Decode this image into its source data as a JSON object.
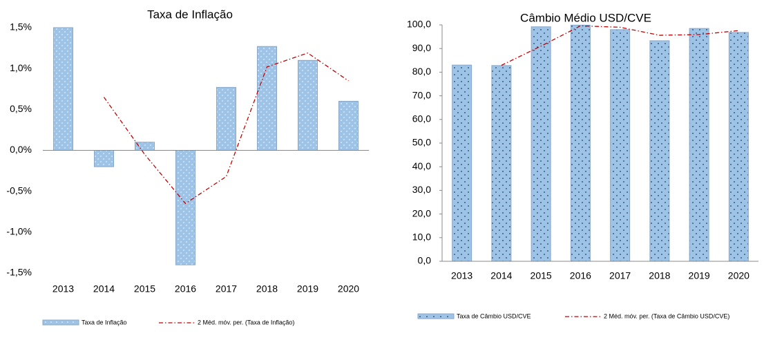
{
  "chart_data": [
    {
      "type": "bar",
      "title": "Taxa de Inflação",
      "categories": [
        "2013",
        "2014",
        "2015",
        "2016",
        "2017",
        "2018",
        "2019",
        "2020"
      ],
      "series": [
        {
          "name": "Taxa de Inflação",
          "color": "#9dc3e6",
          "values": [
            1.5,
            -0.2,
            0.1,
            -1.4,
            0.77,
            1.27,
            1.1,
            0.6
          ]
        },
        {
          "name": "2 Méd. móv. per. (Taxa de Inflação)",
          "color": "#c00000",
          "values": [
            null,
            0.65,
            -0.05,
            -0.65,
            -0.32,
            1.02,
            1.19,
            0.85
          ]
        }
      ],
      "ylim": [
        -1.5,
        1.5
      ],
      "yticks": [
        {
          "value": 1.5,
          "label": "1,5%"
        },
        {
          "value": 1,
          "label": "1,0%"
        },
        {
          "value": 0.5,
          "label": "0,5%"
        },
        {
          "value": 0,
          "label": "0,0%"
        },
        {
          "value": -0.5,
          "label": "-0,5%"
        },
        {
          "value": -1,
          "label": "-1,0%"
        },
        {
          "value": -1.5,
          "label": "-1,5%"
        }
      ]
    },
    {
      "type": "bar",
      "title": "Câmbio Médio USD/CVE",
      "categories": [
        "2013",
        "2014",
        "2015",
        "2016",
        "2017",
        "2018",
        "2019",
        "2020"
      ],
      "series": [
        {
          "name": "Taxa de Câmbio USD/CVE",
          "color": "#9dc3e6",
          "values": [
            83,
            82.8,
            99.2,
            99.9,
            98,
            93.3,
            98.5,
            96.8
          ]
        },
        {
          "name": "2 Méd. móv. per. (Taxa de Câmbio USD/CVE)",
          "color": "#c00000",
          "values": [
            null,
            82.9,
            91,
            99.6,
            99,
            95.6,
            95.9,
            97.6
          ]
        }
      ],
      "ylim": [
        0,
        100
      ],
      "yticks": [
        {
          "value": 0,
          "label": "0,0"
        },
        {
          "value": 10,
          "label": "10,0"
        },
        {
          "value": 20,
          "label": "20,0"
        },
        {
          "value": 30,
          "label": "30,0"
        },
        {
          "value": 40,
          "label": "40,0"
        },
        {
          "value": 50,
          "label": "50,0"
        },
        {
          "value": 60,
          "label": "60,0"
        },
        {
          "value": 70,
          "label": "70,0"
        },
        {
          "value": 80,
          "label": "80,0"
        },
        {
          "value": 90,
          "label": "90,0"
        },
        {
          "value": 100,
          "label": "100,0"
        }
      ]
    }
  ]
}
